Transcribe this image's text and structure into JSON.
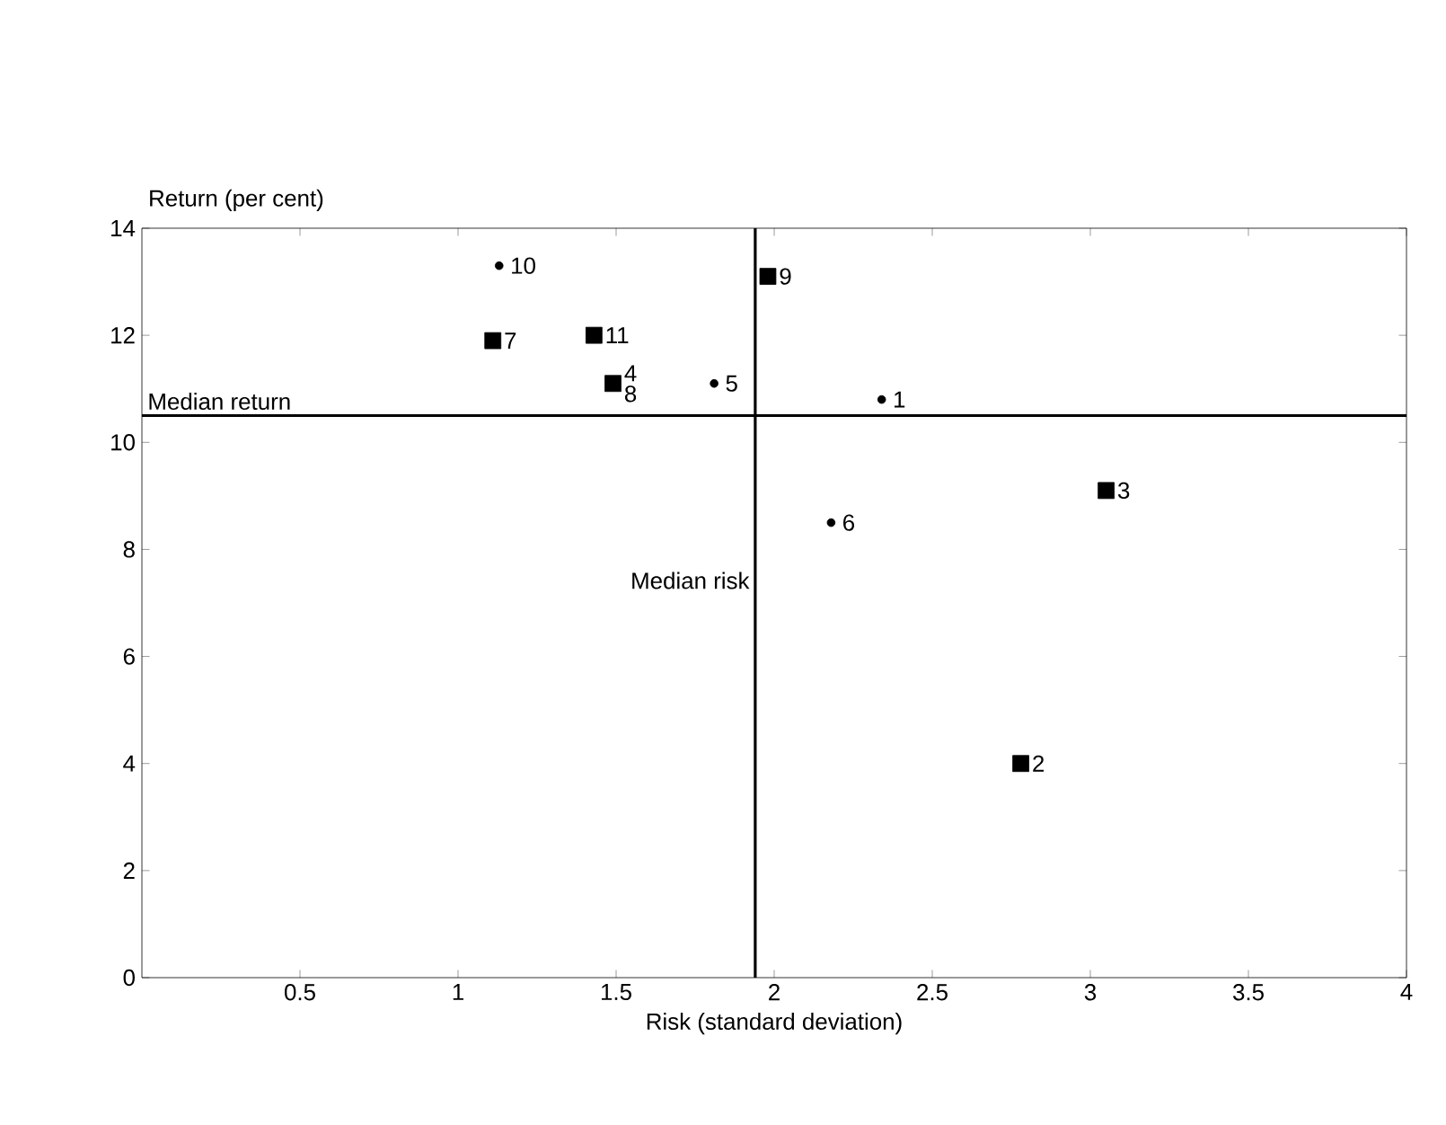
{
  "chart_data": {
    "type": "scatter",
    "xlabel": "Risk (standard deviation)",
    "ylabel": "Return (per cent)",
    "xlim": [
      0,
      4
    ],
    "ylim": [
      0,
      14
    ],
    "xticks": [
      0.5,
      1,
      1.5,
      2,
      2.5,
      3,
      3.5,
      4
    ],
    "yticks": [
      0,
      2,
      4,
      6,
      8,
      10,
      12,
      14
    ],
    "grid": false,
    "series": [
      {
        "color": "#000000",
        "marker": "square",
        "x": [
          1.11,
          1.43,
          1.49,
          1.98,
          3.05,
          2.78
        ],
        "values": [
          11.9,
          12.0,
          11.1,
          13.1,
          9.1,
          4.0
        ]
      },
      {
        "color": "#000000",
        "marker": "circle",
        "x": [
          1.13,
          1.81,
          2.34,
          2.18
        ],
        "values": [
          13.3,
          11.1,
          10.8,
          8.5
        ]
      }
    ],
    "ref_lines": [
      {
        "axis": "y",
        "value": 10.5,
        "label": "Median return",
        "color": "#000000"
      },
      {
        "axis": "x",
        "value": 1.94,
        "label": "Median risk",
        "color": "#000000"
      }
    ],
    "annotations": [
      {
        "text": "7",
        "x": 1.11,
        "y": 11.9
      },
      {
        "text": "11",
        "x": 1.43,
        "y": 12.0
      },
      {
        "text": "4",
        "x": 1.49,
        "y": 11.1
      },
      {
        "text": "8",
        "x": 1.49,
        "y": 11.1
      },
      {
        "text": "9",
        "x": 1.98,
        "y": 13.1
      },
      {
        "text": "3",
        "x": 3.05,
        "y": 9.1
      },
      {
        "text": "2",
        "x": 2.78,
        "y": 4.0
      },
      {
        "text": "10",
        "x": 1.13,
        "y": 13.3
      },
      {
        "text": "5",
        "x": 1.81,
        "y": 11.1
      },
      {
        "text": "1",
        "x": 2.34,
        "y": 10.8
      },
      {
        "text": "6",
        "x": 2.18,
        "y": 8.5
      }
    ]
  }
}
